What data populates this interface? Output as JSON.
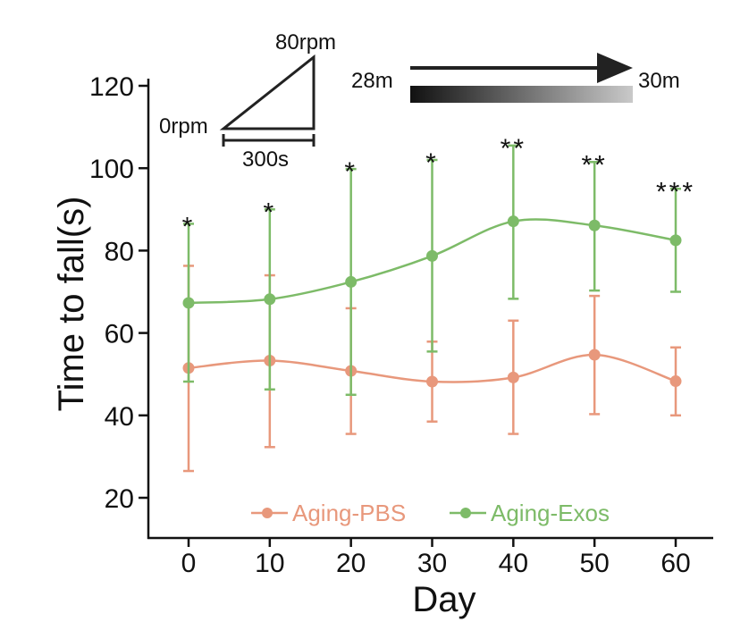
{
  "chart_data": {
    "type": "line",
    "xlabel": "Day",
    "ylabel": "Time to fall(s)",
    "x": [
      0,
      10,
      20,
      30,
      40,
      50,
      60
    ],
    "x_ticks": [
      "0",
      "10",
      "20",
      "30",
      "40",
      "50",
      "60"
    ],
    "y_ticks": [
      "20",
      "40",
      "60",
      "80",
      "100",
      "120"
    ],
    "xlim": [
      -5,
      65
    ],
    "ylim": [
      10,
      123
    ],
    "series": [
      {
        "name": "Aging-PBS",
        "color": "#e8987c",
        "values": [
          51.5,
          53.3,
          50.8,
          48.2,
          49.2,
          54.7,
          48.3
        ],
        "err_upper": [
          76.3,
          74.0,
          66.0,
          57.9,
          63.0,
          69.0,
          56.5
        ],
        "err_lower": [
          26.5,
          32.3,
          35.5,
          38.5,
          35.5,
          40.3,
          40.0
        ]
      },
      {
        "name": "Aging-Exos",
        "color": "#7dbb68",
        "values": [
          67.3,
          68.2,
          72.4,
          78.7,
          87.1,
          86.1,
          82.5
        ],
        "err_upper": [
          86.5,
          90.0,
          99.8,
          102.0,
          105.5,
          101.5,
          95.0
        ],
        "err_lower": [
          48.2,
          46.3,
          45.0,
          55.5,
          68.3,
          70.3,
          70.0
        ]
      }
    ],
    "significance": [
      "*",
      "*",
      "*",
      "*",
      "**",
      "**",
      "***"
    ],
    "legend": {
      "placement": "bottom-center",
      "entries": [
        "Aging-PBS",
        "Aging-Exos"
      ]
    },
    "inset": {
      "speed_start": "0rpm",
      "speed_end": "80rpm",
      "duration": "300s",
      "distance_start": "28m",
      "distance_end": "30m"
    }
  }
}
